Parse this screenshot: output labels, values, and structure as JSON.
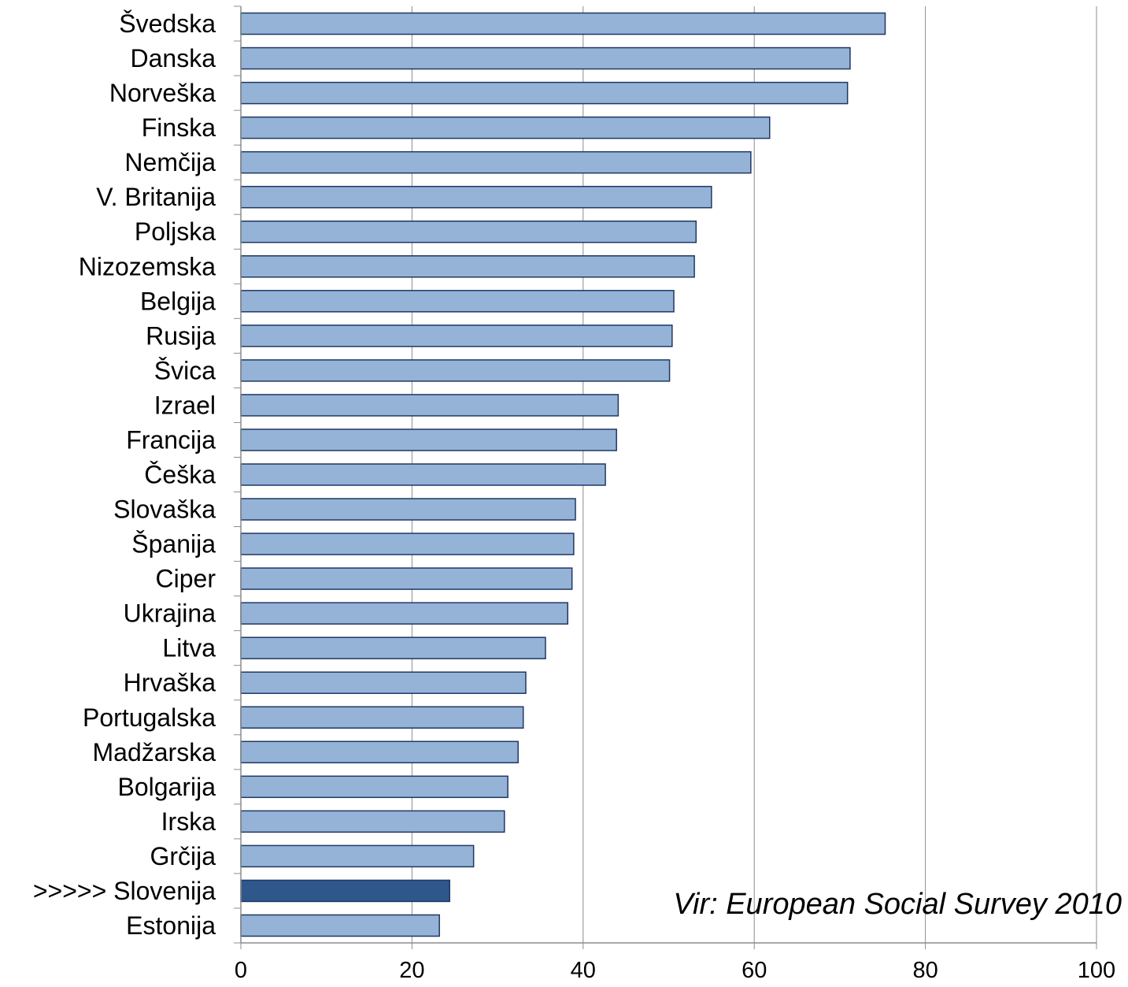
{
  "chart_data": {
    "type": "bar",
    "orientation": "horizontal",
    "title": "",
    "xlabel": "",
    "ylabel": "",
    "xlim": [
      0,
      100
    ],
    "ticks": [
      "0",
      "20",
      "40",
      "60",
      "80",
      "100"
    ],
    "grid": "vertical",
    "annotation": "Vir: European Social Survey 2010",
    "bar_color": "#95B3D7",
    "highlight_color": "#2F578C",
    "outline_color": "#1F3864",
    "categories": [
      "Švedska",
      "Danska",
      "Norveška",
      "Finska",
      "Nemčija",
      "V. Britanija",
      "Poljska",
      "Nizozemska",
      "Belgija",
      "Rusija",
      "Švica",
      "Izrael",
      "Francija",
      "Češka",
      "Slovaška",
      "Španija",
      "Ciper",
      "Ukrajina",
      "Litva",
      "Hrvaška",
      "Portugalska",
      "Madžarska",
      "Bolgarija",
      "Irska",
      "Grčija",
      ">>>>> Slovenija",
      "Estonija"
    ],
    "values": [
      75.3,
      71.2,
      70.9,
      61.8,
      59.6,
      55.0,
      53.2,
      53.0,
      50.6,
      50.4,
      50.1,
      44.1,
      43.9,
      42.6,
      39.1,
      38.9,
      38.7,
      38.2,
      35.6,
      33.3,
      33.0,
      32.4,
      31.2,
      30.8,
      27.2,
      24.4,
      23.2
    ],
    "highlight": ">>>>> Slovenija"
  }
}
